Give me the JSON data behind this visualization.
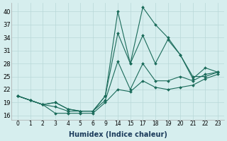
{
  "xlabel": "Humidex (Indice chaleur)",
  "background_color": "#d6eeee",
  "grid_color": "#b8d8d8",
  "line_color": "#1a6b5a",
  "ylim": [
    15,
    42
  ],
  "yticks": [
    16,
    19,
    22,
    25,
    28,
    31,
    34,
    37,
    40
  ],
  "xlabel_color": "#1a3a5a",
  "categories": [
    0,
    1,
    2,
    3,
    4,
    5,
    6,
    9,
    14,
    15,
    17,
    18,
    19,
    20,
    21,
    22,
    23
  ],
  "lines": [
    {
      "indices": [
        0,
        1,
        2,
        3,
        4,
        5,
        6,
        7,
        8,
        9,
        10,
        11,
        12,
        13,
        14,
        15,
        16
      ],
      "y": [
        20.5,
        19.5,
        18.5,
        19.0,
        17.5,
        17.0,
        17.0,
        20.5,
        40.0,
        28.0,
        41.0,
        37.0,
        34.0,
        30.0,
        24.5,
        27.0,
        26.0
      ]
    },
    {
      "indices": [
        0,
        2,
        3,
        4,
        5,
        6,
        7,
        8,
        9,
        10,
        11,
        12,
        13,
        14,
        15,
        16
      ],
      "y": [
        20.5,
        18.5,
        19.0,
        17.5,
        17.0,
        17.0,
        20.5,
        35.0,
        28.0,
        34.5,
        28.0,
        33.5,
        30.0,
        25.0,
        25.0,
        26.0
      ]
    },
    {
      "indices": [
        0,
        1,
        2,
        3,
        4,
        5,
        6,
        7,
        8,
        9,
        10,
        11,
        12,
        13,
        14,
        15,
        16
      ],
      "y": [
        20.5,
        19.5,
        18.5,
        18.0,
        17.0,
        17.0,
        17.0,
        19.5,
        28.5,
        22.0,
        28.0,
        24.0,
        24.0,
        25.0,
        24.0,
        25.5,
        26.0
      ]
    },
    {
      "indices": [
        0,
        1,
        2,
        3,
        4,
        5,
        6,
        7,
        8,
        9,
        10,
        11,
        12,
        13,
        14,
        15,
        16
      ],
      "y": [
        20.5,
        19.5,
        18.5,
        16.5,
        16.5,
        16.5,
        16.5,
        19.0,
        22.0,
        21.5,
        24.0,
        22.5,
        22.0,
        22.5,
        23.0,
        24.5,
        25.5
      ]
    }
  ]
}
